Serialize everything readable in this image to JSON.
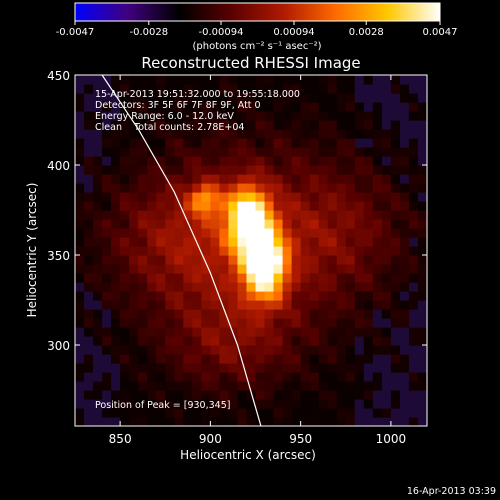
{
  "colorbar": {
    "ticks": [
      "-0.0047",
      "-0.0028",
      "-0.00094",
      "0.00094",
      "0.0028",
      "0.0047"
    ],
    "tick_values": [
      -0.0047,
      -0.0028,
      -0.00094,
      0.00094,
      0.0028,
      0.0047
    ],
    "unit_label": "(photons cm⁻² s⁻¹ asec⁻²)",
    "colormap": [
      "#0000ff",
      "#400080",
      "#000000",
      "#5a0000",
      "#b01a00",
      "#ff6a00",
      "#ffc800",
      "#ffffff"
    ]
  },
  "chart_data": {
    "type": "heatmap",
    "title": "Reconstructed RHESSI Image",
    "xlabel": "Heliocentric X (arcsec)",
    "ylabel": "Heliocentric Y (arcsec)",
    "xlim": [
      825,
      1020
    ],
    "ylim": [
      255,
      450
    ],
    "x_ticks": [
      850,
      900,
      950,
      1000
    ],
    "y_ticks": [
      300,
      350,
      400,
      450
    ],
    "annotations": [
      "15-Apr-2013 19:51:32.000 to 19:55:18.000",
      "Detectors: 3F 5F 6F 7F 8F 9F, Att 0",
      "Energy Range: 6.0 - 12.0 keV",
      "Clean    Total counts: 2.78E+04"
    ],
    "peak_label": "Position of Peak = [930,345]",
    "peak_position": [
      930,
      345
    ],
    "sources": [
      {
        "x": 930,
        "y": 345,
        "sigma_x": 8,
        "sigma_y": 13,
        "amplitude": 1.0
      },
      {
        "x": 921,
        "y": 370,
        "sigma_x": 8,
        "sigma_y": 12,
        "amplitude": 0.9
      },
      {
        "x": 897,
        "y": 381,
        "sigma_x": 6,
        "sigma_y": 6,
        "amplitude": 0.45
      },
      {
        "x": 922,
        "y": 355,
        "sigma_x": 42,
        "sigma_y": 42,
        "amplitude": 0.28
      },
      {
        "x": 880,
        "y": 360,
        "sigma_x": 30,
        "sigma_y": 25,
        "amplitude": 0.18
      },
      {
        "x": 975,
        "y": 365,
        "sigma_x": 28,
        "sigma_y": 25,
        "amplitude": 0.15
      },
      {
        "x": 910,
        "y": 300,
        "sigma_x": 25,
        "sigma_y": 18,
        "amplitude": 0.16
      }
    ],
    "limb_curve": [
      [
        840,
        450
      ],
      [
        860,
        420
      ],
      [
        880,
        385
      ],
      [
        900,
        340
      ],
      [
        915,
        300
      ],
      [
        928,
        255
      ]
    ],
    "grid": false
  },
  "footer": {
    "timestamp": "16-Apr-2013 03:39"
  }
}
